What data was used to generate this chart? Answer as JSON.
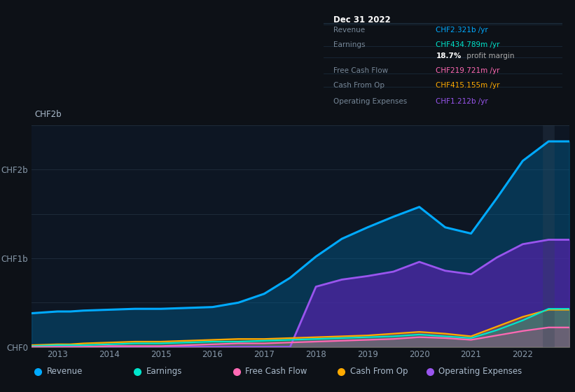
{
  "bg_color": "#0d1117",
  "plot_bg_color": "#0d1623",
  "grid_color": "#263545",
  "years": [
    2012.5,
    2013,
    2013.25,
    2013.5,
    2014,
    2014.5,
    2015,
    2015.5,
    2016,
    2016.5,
    2017,
    2017.5,
    2018,
    2018.5,
    2019,
    2019.5,
    2020,
    2020.5,
    2021,
    2021.5,
    2022,
    2022.5,
    2022.9
  ],
  "revenue": [
    0.38,
    0.4,
    0.4,
    0.41,
    0.42,
    0.43,
    0.43,
    0.44,
    0.45,
    0.5,
    0.6,
    0.78,
    1.02,
    1.22,
    1.35,
    1.47,
    1.58,
    1.35,
    1.28,
    1.68,
    2.1,
    2.32,
    2.32
  ],
  "earnings": [
    0.01,
    0.02,
    0.02,
    0.02,
    0.03,
    0.04,
    0.04,
    0.05,
    0.06,
    0.06,
    0.07,
    0.08,
    0.09,
    0.1,
    0.11,
    0.12,
    0.14,
    0.12,
    0.1,
    0.19,
    0.3,
    0.43,
    0.43
  ],
  "free_cash_flow": [
    0.0,
    0.0,
    0.0,
    0.0,
    0.01,
    0.01,
    0.01,
    0.02,
    0.03,
    0.04,
    0.04,
    0.05,
    0.06,
    0.07,
    0.08,
    0.09,
    0.11,
    0.1,
    0.08,
    0.13,
    0.18,
    0.22,
    0.22
  ],
  "cash_from_op": [
    0.02,
    0.03,
    0.03,
    0.04,
    0.05,
    0.06,
    0.06,
    0.07,
    0.08,
    0.09,
    0.09,
    0.1,
    0.11,
    0.12,
    0.13,
    0.15,
    0.17,
    0.15,
    0.12,
    0.23,
    0.34,
    0.42,
    0.42
  ],
  "op_expenses": [
    0.0,
    0.0,
    0.0,
    0.0,
    0.0,
    0.0,
    0.0,
    0.0,
    0.0,
    0.0,
    0.0,
    0.0,
    0.68,
    0.76,
    0.8,
    0.85,
    0.96,
    0.86,
    0.82,
    1.01,
    1.16,
    1.21,
    1.21
  ],
  "revenue_color": "#00aaff",
  "earnings_color": "#00e5cc",
  "fcf_color": "#ff69b4",
  "cashop_color": "#ffaa00",
  "opex_color": "#9955ee",
  "revenue_fill": "#006699",
  "earnings_fill": "#00b090",
  "fcf_fill": "#cc4488",
  "cashop_fill": "#cc8800",
  "opex_fill": "#5522aa",
  "xmin": 2012.5,
  "xmax": 2022.9,
  "ymin": 0,
  "ymax": 2.5,
  "ytick_vals": [
    0,
    0.5,
    1.0,
    1.5,
    2.0,
    2.5
  ],
  "ytick_labels": [
    "CHF0",
    "",
    "CHF1b",
    "",
    "CHF2b",
    ""
  ],
  "xtick_vals": [
    2013,
    2014,
    2015,
    2016,
    2017,
    2018,
    2019,
    2020,
    2021,
    2022
  ],
  "xtick_labels": [
    "2013",
    "2014",
    "2015",
    "2016",
    "2017",
    "2018",
    "2019",
    "2020",
    "2021",
    "2022"
  ],
  "tooltip_title": "Dec 31 2022",
  "tooltip_rows": [
    {
      "label": "Revenue",
      "value": "CHF2.321b /yr",
      "value_color": "#00aaff",
      "bold_part": null
    },
    {
      "label": "Earnings",
      "value": "CHF434.789m /yr",
      "value_color": "#00e5cc",
      "bold_part": null
    },
    {
      "label": "",
      "value": "18.7% profit margin",
      "value_color": "#cccccc",
      "bold_part": "18.7%"
    },
    {
      "label": "Free Cash Flow",
      "value": "CHF219.721m /yr",
      "value_color": "#ff69b4",
      "bold_part": null
    },
    {
      "label": "Cash From Op",
      "value": "CHF415.155m /yr",
      "value_color": "#ffaa00",
      "bold_part": null
    },
    {
      "label": "Operating Expenses",
      "value": "CHF1.212b /yr",
      "value_color": "#9955ee",
      "bold_part": null
    }
  ],
  "legend_items": [
    {
      "label": "Revenue",
      "color": "#00aaff"
    },
    {
      "label": "Earnings",
      "color": "#00e5cc"
    },
    {
      "label": "Free Cash Flow",
      "color": "#ff69b4"
    },
    {
      "label": "Cash From Op",
      "color": "#ffaa00"
    },
    {
      "label": "Operating Expenses",
      "color": "#9955ee"
    }
  ]
}
